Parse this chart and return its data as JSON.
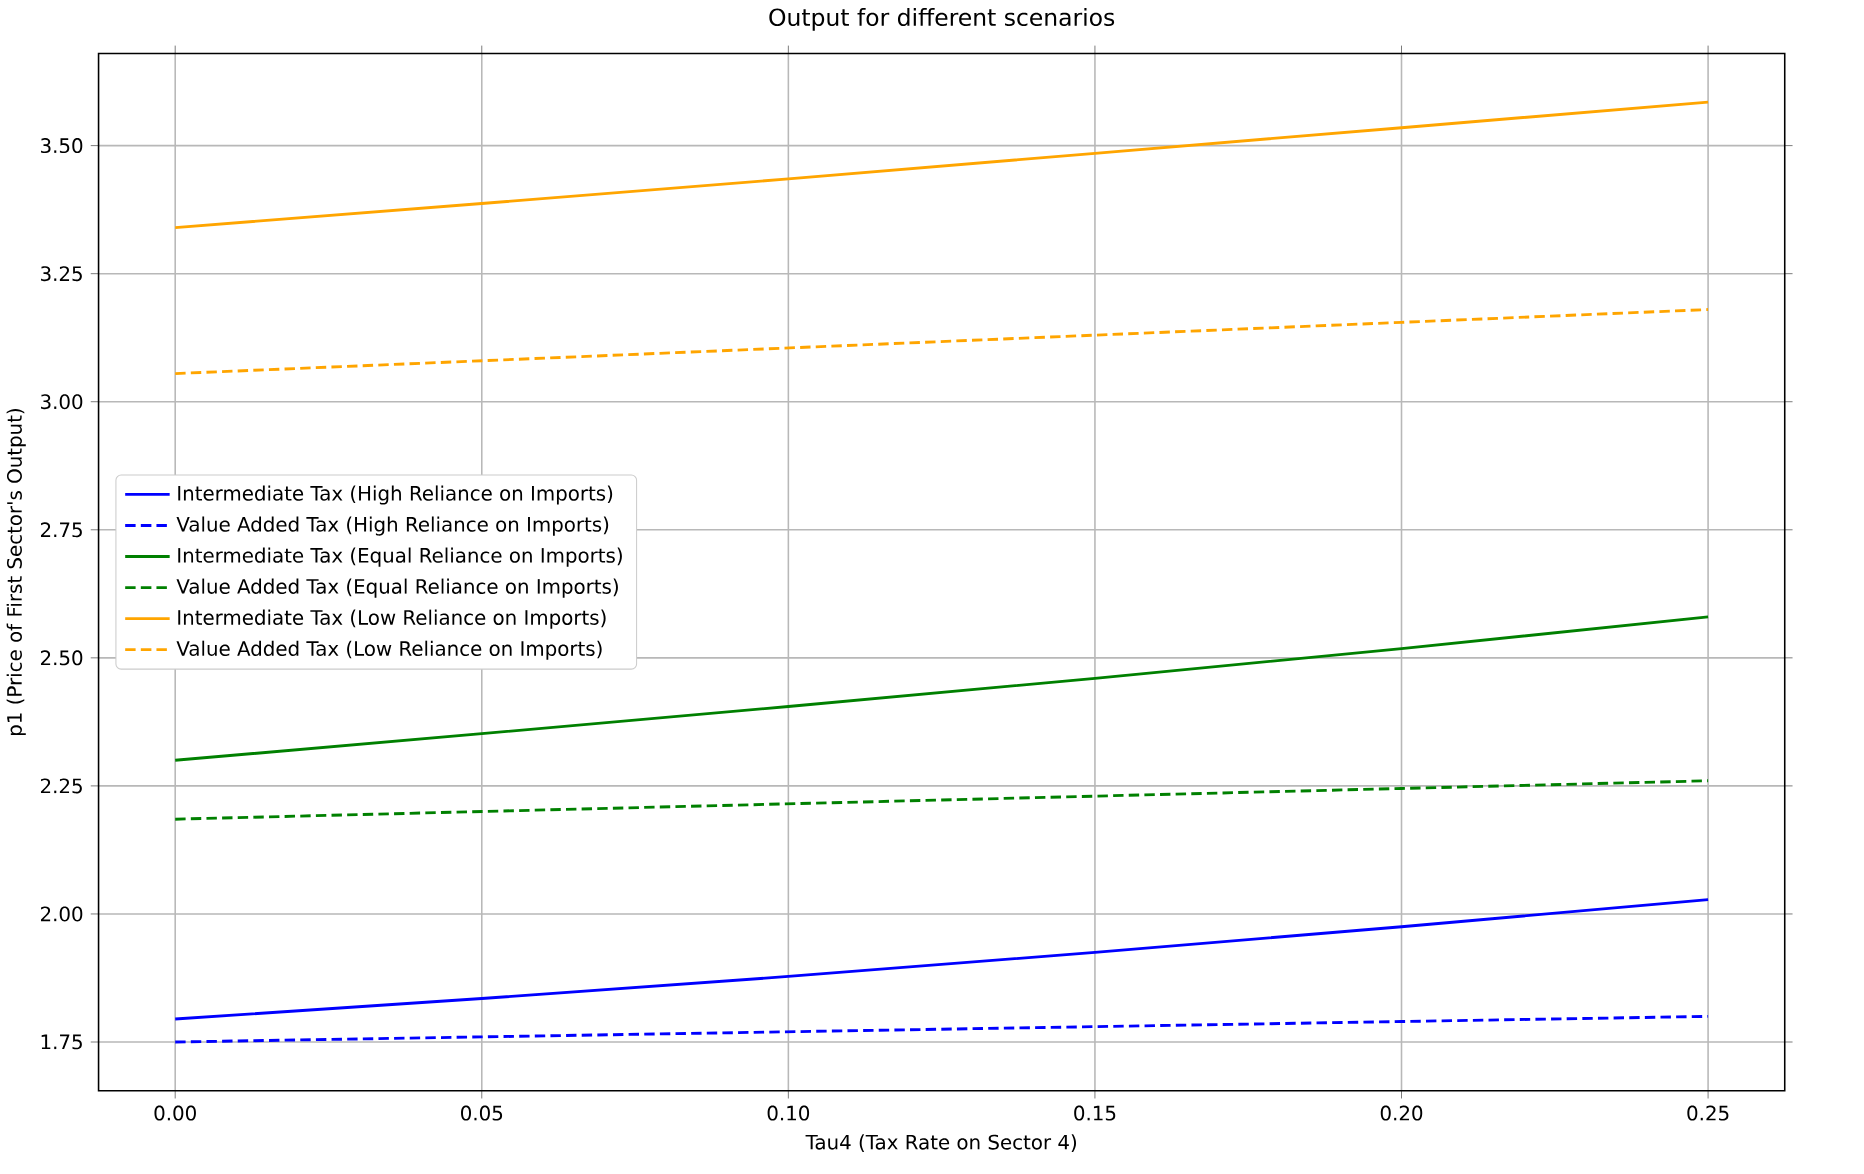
{
  "chart_data": {
    "type": "line",
    "title": "Output for different scenarios",
    "xlabel": "Tau4 (Tax Rate on Sector 4)",
    "ylabel": "p1 (Price of First Sector's Output)",
    "x": [
      0,
      0.05,
      0.1,
      0.15,
      0.2,
      0.25
    ],
    "series": [
      {
        "name": "Intermediate Tax (High Reliance on Imports)",
        "color": "#0000ff",
        "line_style": "solid",
        "values": [
          1.795,
          1.835,
          1.878,
          1.925,
          1.975,
          2.028
        ]
      },
      {
        "name": "Value Added Tax (High Reliance on Imports)",
        "color": "#0000ff",
        "line_style": "dashed",
        "values": [
          1.75,
          1.76,
          1.77,
          1.78,
          1.79,
          1.8
        ]
      },
      {
        "name": "Intermediate Tax (Equal Reliance on Imports)",
        "color": "#008000",
        "line_style": "solid",
        "values": [
          2.3,
          2.352,
          2.405,
          2.46,
          2.518,
          2.58
        ]
      },
      {
        "name": "Value Added Tax (Equal Reliance on Imports)",
        "color": "#008000",
        "line_style": "dashed",
        "values": [
          2.185,
          2.2,
          2.215,
          2.23,
          2.245,
          2.26
        ]
      },
      {
        "name": "Intermediate Tax (Low Reliance on Imports)",
        "color": "#ffa500",
        "line_style": "solid",
        "values": [
          3.34,
          3.387,
          3.435,
          3.485,
          3.535,
          3.585
        ]
      },
      {
        "name": "Value Added Tax (Low Reliance on Imports)",
        "color": "#ffa500",
        "line_style": "dashed",
        "values": [
          3.055,
          3.08,
          3.105,
          3.13,
          3.155,
          3.18
        ]
      }
    ],
    "xlim": [
      -0.0125,
      0.2625
    ],
    "ylim": [
      1.655,
      3.68
    ],
    "xticks": [
      {
        "value": 0,
        "label": "0.00"
      },
      {
        "value": 0.05,
        "label": "0.05"
      },
      {
        "value": 0.1,
        "label": "0.10"
      },
      {
        "value": 0.15,
        "label": "0.15"
      },
      {
        "value": 0.2,
        "label": "0.20"
      },
      {
        "value": 0.25,
        "label": "0.25"
      }
    ],
    "yticks": [
      {
        "value": 1.75,
        "label": "1.75"
      },
      {
        "value": 2,
        "label": "2.00"
      },
      {
        "value": 2.25,
        "label": "2.25"
      },
      {
        "value": 2.5,
        "label": "2.50"
      },
      {
        "value": 2.75,
        "label": "2.75"
      },
      {
        "value": 3,
        "label": "3.00"
      },
      {
        "value": 3.25,
        "label": "3.25"
      },
      {
        "value": 3.5,
        "label": "3.50"
      }
    ],
    "grid": true,
    "legend": "left",
    "marker": "none"
  }
}
